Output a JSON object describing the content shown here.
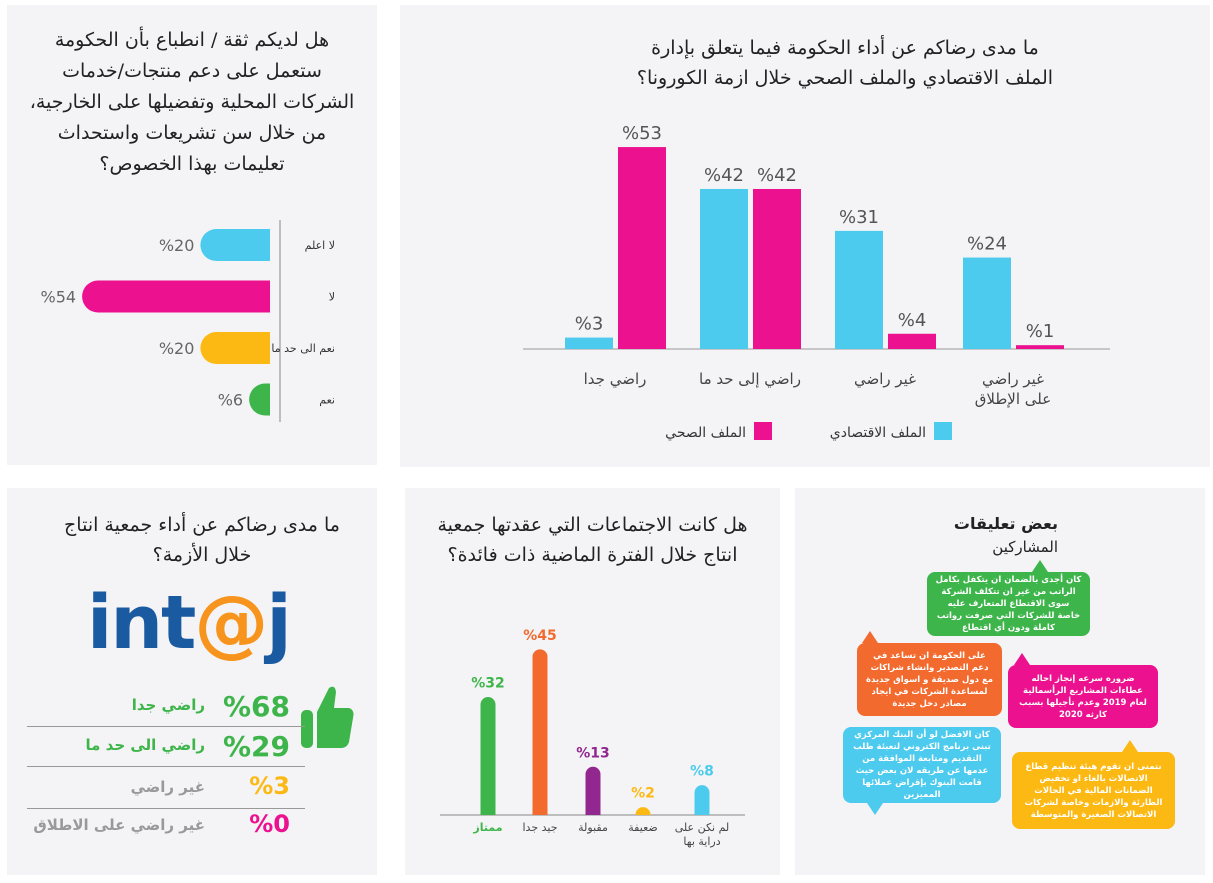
{
  "colors": {
    "cyan": "#4ccbee",
    "pink": "#ec118f",
    "green": "#3db54a",
    "orange": "#f26a2e",
    "purple": "#92278f",
    "yellow": "#fdb913",
    "gray": "#999999",
    "blue": "#1a5aa0"
  },
  "trust_panel": {
    "title": "هل لديكم ثقة / انطباع بأن الحكومة ستعمل على دعم منتجات/خدمات الشركات المحلية وتفضيلها على الخارجية، من خلال سن تشريعات واستحداث تعليمات بهذا الخصوص؟"
  },
  "satisfaction_panel": {
    "title": "ما مدى رضاكم عن أداء الحكومة فيما يتعلق بإدارة الملف الاقتصادي والملف الصحي خلال ازمة الكورونا؟"
  },
  "intaj_panel": {
    "title": "ما مدى رضاكم عن أداء جمعية انتاج خلال الأزمة؟",
    "logo_text": "int@j",
    "rows": [
      {
        "pct": "%68",
        "label": "راضي جدا"
      },
      {
        "pct": "%29",
        "label": "راضي الى حد ما"
      },
      {
        "pct": "%3",
        "label": "غير راضي"
      },
      {
        "pct": "%0",
        "label": "غير راضي على الاطلاق"
      }
    ]
  },
  "meetings_panel": {
    "title": "هل كانت الاجتماعات التي عقدتها جمعية انتاج خلال الفترة الماضية ذات فائدة؟"
  },
  "comments_panel": {
    "title": "بعض تعليقات",
    "subtitle": "المشاركين",
    "comments": [
      "كان أجدى بالضمان ان يتكفل بكامل الراتب من غير ان تتكلف الشركة سوى الاقتطاع المتعارف عليه خاصة للشركات التي صرفت رواتب كاملة ودون أي اقتطاع",
      "على الحكومة ان تساعد في دعم التصدير وانشاء شراكات مع دول صديقة و اسواق جديدة لمساعدة الشركات في ايجاد مصادر دخل جديدة",
      "ضروره سرعه إنجاز احاله عطاءات المشاريع الرأسمالية لعام 2019 وعدم تأجيلها بسبب كارثه 2020",
      "كان الافضل لو أن البنك المركزي تبنى برنامج الكتروني لتعبئة طلب التقديم ومتابعة الموافقة من عدمها عن طريقه لان بعض حيث قامت البنوك بإقراض عملائها المميزين",
      "نتمنى ان تقوم هيئة تنظيم قطاع الاتصالات بالغاء او تخفيض الضمانات المالية في الحالات الطارئة والازمات وخاصة لشركات الاتصالات الصغيرة والمتوسطة"
    ]
  },
  "chart_data": [
    {
      "type": "bar",
      "orientation": "horizontal",
      "categories": [
        "لا اعلم",
        "لا",
        "نعم الى حد ما",
        "نعم"
      ],
      "values": [
        20,
        54,
        20,
        6
      ],
      "labels": [
        "%20",
        "%54",
        "%20",
        "%6"
      ],
      "colors": [
        "#4ccbee",
        "#ec118f",
        "#fdb913",
        "#3db54a"
      ],
      "xlim": [
        0,
        60
      ]
    },
    {
      "type": "bar",
      "categories": [
        "راضي جدا",
        "راضي إلى حد ما",
        "غير راضي",
        "غير راضي على الإطلاق"
      ],
      "series": [
        {
          "name": "الملف الاقتصادي",
          "values": [
            3,
            42,
            31,
            24
          ],
          "labels": [
            "%3",
            "%42",
            "%31",
            "%24"
          ],
          "color": "#4ccbee"
        },
        {
          "name": "الملف الصحي",
          "values": [
            53,
            42,
            4,
            1
          ],
          "labels": [
            "%53",
            "%42",
            "%4",
            "%1"
          ],
          "color": "#ec118f"
        }
      ],
      "ylim": [
        0,
        55
      ],
      "legend": "bottom"
    },
    {
      "type": "bar",
      "categories": [
        "ممتاز",
        "جيد جدا",
        "مقبولة",
        "ضعيفة",
        "لم نكن على دراية بها"
      ],
      "values": [
        32,
        45,
        13,
        2,
        8
      ],
      "labels": [
        "%32",
        "%45",
        "%13",
        "%2",
        "%8"
      ],
      "colors": [
        "#3db54a",
        "#f26a2e",
        "#92278f",
        "#fdb913",
        "#4ccbee"
      ],
      "ylim": [
        0,
        50
      ]
    }
  ]
}
